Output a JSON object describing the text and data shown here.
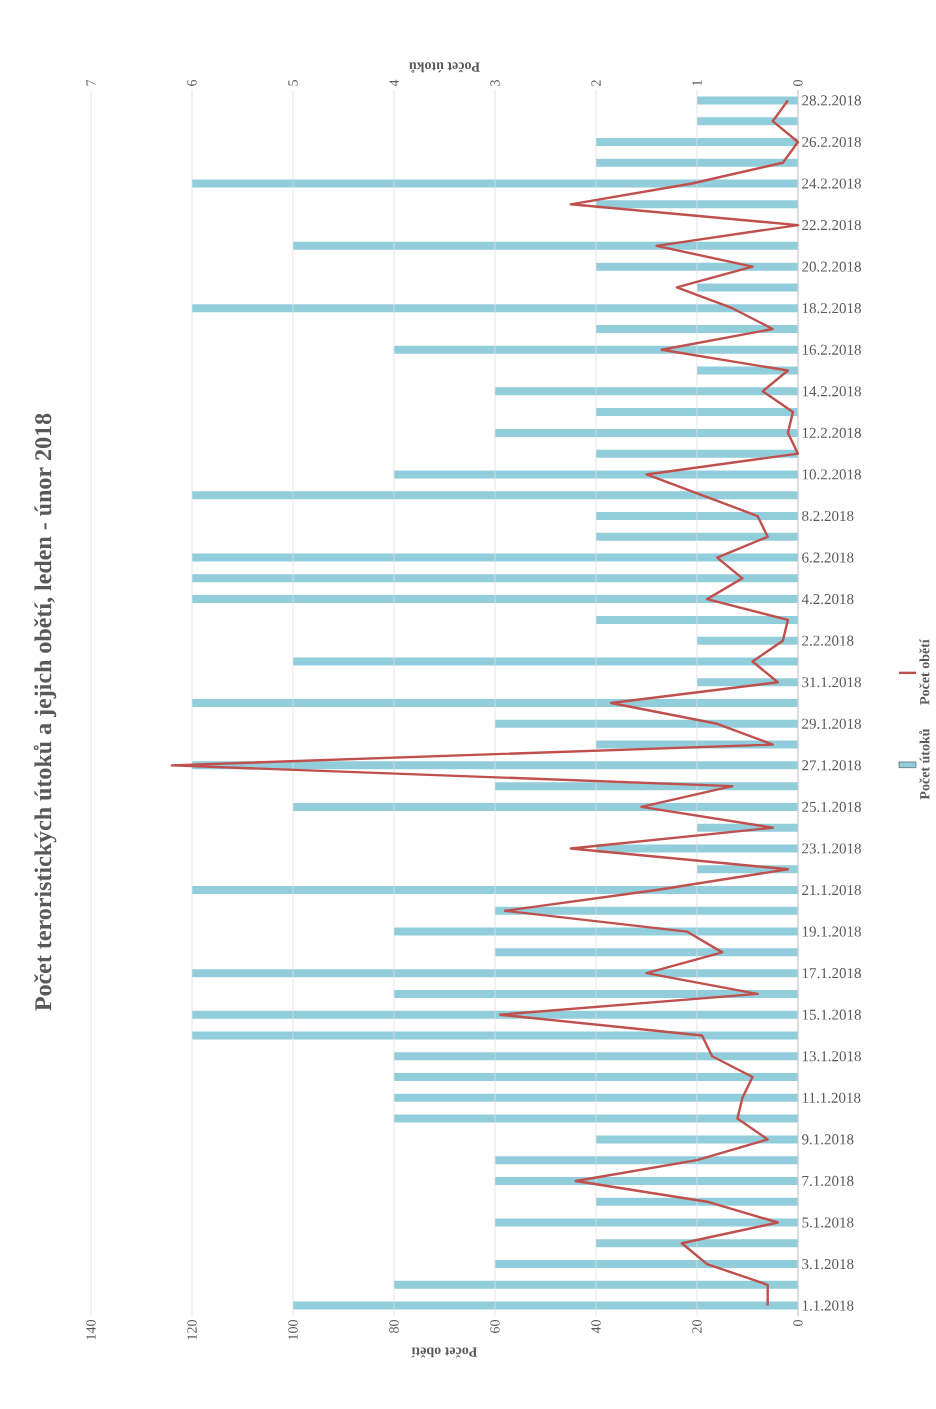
{
  "chart_data": {
    "type": "bar",
    "orientation": "horizontal",
    "title": "Počet teroristických útoků  a jejich obětí, leden - únor 2018",
    "xlabel": "Počet obětí",
    "x2label": "Počet útoků",
    "categories": [
      "28.2.2018",
      null,
      "26.2.2018",
      null,
      "24.2.2018",
      null,
      "22.2.2018",
      null,
      "20.2.2018",
      null,
      "18.2.2018",
      null,
      "16.2.2018",
      null,
      "14.2.2018",
      null,
      "12.2.2018",
      null,
      "10.2.2018",
      null,
      "8.2.2018",
      null,
      "6.2.2018",
      null,
      "4.2.2018",
      null,
      "2.2.2018",
      null,
      "31.1.2018",
      null,
      "29.1.2018",
      null,
      "27.1.2018",
      null,
      "25.1.2018",
      null,
      "23.1.2018",
      null,
      "21.1.2018",
      null,
      "19.1.2018",
      null,
      "17.1.2018",
      null,
      "15.1.2018",
      null,
      "13.1.2018",
      null,
      "11.1.2018",
      null,
      "9.1.2018",
      null,
      "7.1.2018",
      null,
      "5.1.2018",
      null,
      "3.1.2018",
      null,
      "1.1.2018"
    ],
    "series": [
      {
        "name": "Počet útoků",
        "axis": "x2",
        "color": "#92cddc",
        "values": [
          1,
          1,
          2,
          2,
          6,
          2,
          0,
          5,
          2,
          1,
          6,
          2,
          4,
          1,
          3,
          2,
          3,
          2,
          4,
          6,
          2,
          2,
          6,
          6,
          6,
          2,
          1,
          5,
          1,
          6,
          3,
          2,
          6,
          3,
          5,
          1,
          2,
          1,
          6,
          3,
          4,
          3,
          6,
          4,
          6,
          6,
          4,
          4,
          4,
          4,
          2,
          3,
          3,
          2,
          3,
          2,
          3,
          4,
          5
        ]
      },
      {
        "name": "Počet obětí",
        "type": "line",
        "color": "#c0504d",
        "values": [
          2,
          5,
          0,
          3,
          21,
          45,
          0,
          28,
          9,
          24,
          13,
          5,
          27,
          2,
          7,
          1,
          2,
          0,
          30,
          19,
          8,
          6,
          16,
          11,
          18,
          2,
          3,
          9,
          4,
          37,
          16,
          5,
          124,
          13,
          31,
          5,
          45,
          2,
          28,
          58,
          22,
          15,
          30,
          8,
          59,
          19,
          17,
          9,
          11,
          12,
          6,
          20,
          44,
          18,
          4,
          23,
          18,
          6,
          6
        ]
      }
    ],
    "xlim": [
      140,
      0
    ],
    "xticks": [
      0,
      20,
      40,
      60,
      80,
      100,
      120,
      140
    ],
    "x2lim": [
      7,
      0
    ],
    "x2ticks": [
      0,
      1,
      2,
      3,
      4,
      5,
      6,
      7
    ],
    "grid": "x",
    "legend": "right"
  }
}
